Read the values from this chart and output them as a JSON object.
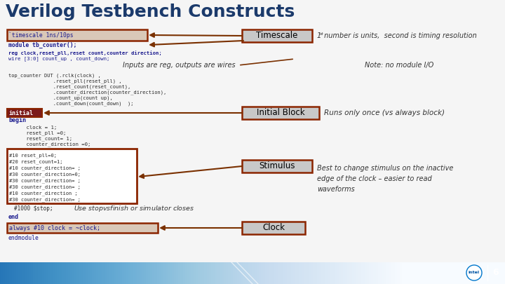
{
  "title": "Verilog Testbench Constructs",
  "title_color": "#1b3a6b",
  "title_fontsize": 18,
  "slide_bg": "#f5f5f5",
  "box_border_dark": "#8b2500",
  "box_border_med": "#8b4000",
  "arrow_color": "#7a3000",
  "label_bg": "#c8c8c8",
  "highlight_orange": "#d4956e",
  "highlight_red_dark": "#7b1a1a",
  "code_blue": "#1a1a8e",
  "code_dark": "#2a2a2a",
  "footer_left": "#003a7d",
  "footer_right": "#00b0dd",
  "page_num": "6",
  "timescale_label": "Timescale",
  "timescale_note1": "1",
  "timescale_note2": "st",
  "timescale_note3": " number is units,  second is timing resolution",
  "inputs_label": "Inputs are reg, outputs are wires",
  "note_io": "Note: no module I/O",
  "initial_label": "Initial Block",
  "initial_note": "Runs only once (vs always block)",
  "stimulus_label": "Stimulus",
  "stimulus_note": "Best to change stimulus on the inactive\nedge of the clock – easier to read\nwaveforms",
  "stop_note": "Use $stop vs $finish or simulator closes",
  "clock_label": "Clock",
  "code_timescale": "`timescale 1ns/10ps",
  "code_module": "module tb_counter();",
  "code_reg": "reg clock,reset_pll,reset count,counter direction;",
  "code_wire": "wire [3:0] count_up , count_down;",
  "code_inst": [
    "top_counter DUT (.rclk(clock) ,",
    "               .reset_pll(reset_pll) ,",
    "               .reset_count(reset_count),",
    "               .counter_direction(counter_direction),",
    "               .count_up(count up),",
    "               .count_down(count_down)  );"
  ],
  "code_initial": "initial",
  "code_begin": "begin",
  "code_inits": [
    "    clock = 1;",
    "    reset_pll =0;",
    "    reset_count= 1;",
    "    counter_direction =0;"
  ],
  "code_stims": [
    "#10 reset_pll=0;",
    "#20 reset_count=1;",
    "#10 counter_direction= ;",
    "#30 counter_direction=0;",
    "#30 counter_direction= ;",
    "#30 counter_direction= ;",
    "#10 counter_direction ;",
    "#30 counter_direction= ;"
  ],
  "code_stop": "#1000 $stop;",
  "code_end": "end",
  "code_always": "always #10 clock = ~clock;",
  "code_endmodule": "endmodule"
}
